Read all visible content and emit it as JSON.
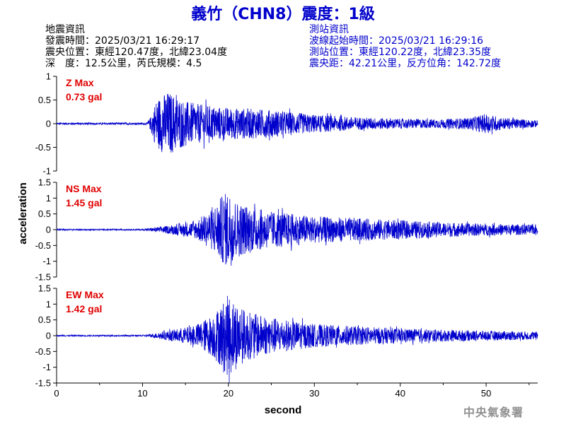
{
  "header": {
    "title": "義竹（CHN8）震度：1級",
    "event_heading": "地震資訊",
    "event_time": "發震時間：2025/03/21 16:29:17",
    "epicenter": "震央位置：東經120.47度，北緯23.04度",
    "depth_magnitude": "深　度：12.5公里，芮氏規模：4.5",
    "station_heading": "測站資訊",
    "wave_onset": "波線起始時間：2025/03/21 16:29:16",
    "station_location": "測站位置：東經120.22度，北緯23.35度",
    "distance_azimuth": "震央距：42.21公里，反方位角：142.72度"
  },
  "footer": {
    "agency": "中央氣象署"
  },
  "colors": {
    "trace": "#0000cc",
    "label": "#e00000",
    "title": "#0000cc",
    "axis": "#000000"
  },
  "chart_data": {
    "type": "line",
    "xlabel": "second",
    "ylabel": "acceleration",
    "xlim": [
      0,
      56
    ],
    "xticks": [
      0,
      10,
      20,
      30,
      40,
      50
    ],
    "grid": false,
    "panels": [
      {
        "name": "Z",
        "label": "Z Max",
        "max_value": "0.73 gal",
        "ylim": [
          -1,
          1
        ],
        "yticks": [
          1,
          0.5,
          0,
          -0.5,
          -1
        ],
        "ytick_labels": [
          "1",
          "0.5",
          "0",
          "-0.5",
          "-1"
        ],
        "envelope": {
          "x": [
            0,
            10.5,
            11,
            11.5,
            12,
            13,
            14,
            15,
            17,
            20,
            23,
            25,
            28,
            30,
            35,
            40,
            45,
            48,
            50,
            52,
            56
          ],
          "y": [
            0.02,
            0.02,
            0.15,
            0.45,
            0.55,
            0.65,
            0.55,
            0.45,
            0.38,
            0.32,
            0.3,
            0.28,
            0.22,
            0.18,
            0.13,
            0.1,
            0.09,
            0.12,
            0.2,
            0.12,
            0.07
          ]
        }
      },
      {
        "name": "NS",
        "label": "NS Max",
        "max_value": "1.45 gal",
        "ylim": [
          -1.5,
          1.5
        ],
        "yticks": [
          1.5,
          1,
          0.5,
          0,
          -0.5,
          -1,
          -1.5
        ],
        "ytick_labels": [
          "1.5",
          "1",
          "0.5",
          "0",
          "-0.5",
          "-1",
          "-1.5"
        ],
        "envelope": {
          "x": [
            0,
            10,
            11,
            13,
            16,
            18,
            19,
            20,
            21,
            23,
            25,
            27,
            30,
            35,
            40,
            45,
            50,
            56
          ],
          "y": [
            0.02,
            0.02,
            0.05,
            0.12,
            0.25,
            0.6,
            0.95,
            1.2,
            0.85,
            0.65,
            0.55,
            0.5,
            0.4,
            0.35,
            0.28,
            0.22,
            0.18,
            0.15
          ]
        }
      },
      {
        "name": "EW",
        "label": "EW Max",
        "max_value": "1.42 gal",
        "ylim": [
          -1.5,
          1.5
        ],
        "yticks": [
          1.5,
          1,
          0.5,
          0,
          -0.5,
          -1,
          -1.5
        ],
        "ytick_labels": [
          "1.5",
          "1",
          "0.5",
          "0",
          "-0.5",
          "-1",
          "-1.5"
        ],
        "envelope": {
          "x": [
            0,
            10,
            11,
            13,
            16,
            18,
            19,
            20,
            21,
            22,
            24,
            26,
            30,
            35,
            40,
            45,
            50,
            56
          ],
          "y": [
            0.02,
            0.02,
            0.05,
            0.15,
            0.3,
            0.6,
            0.9,
            1.25,
            1.0,
            0.75,
            0.6,
            0.5,
            0.35,
            0.28,
            0.22,
            0.18,
            0.15,
            0.12
          ]
        }
      }
    ]
  }
}
